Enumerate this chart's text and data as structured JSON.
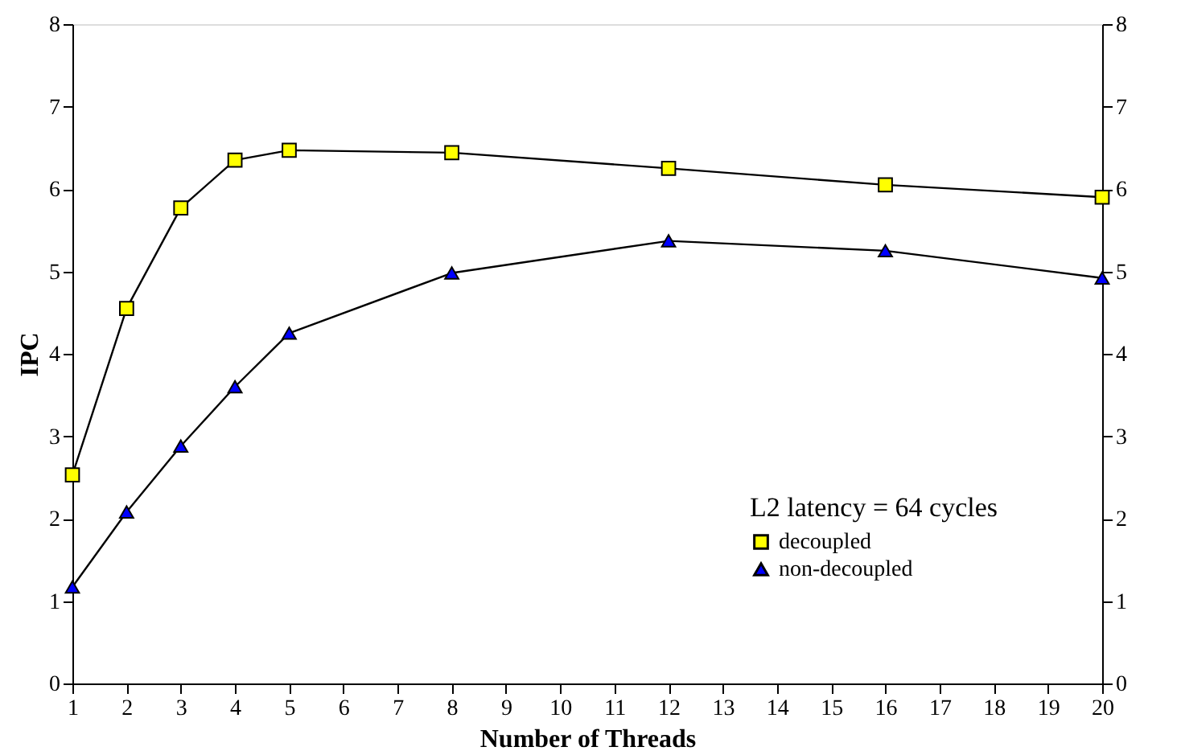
{
  "chart_data": {
    "type": "line",
    "xlabel": "Number of Threads",
    "ylabel": "IPC",
    "legend_title": "L2 latency = 64 cycles",
    "legend": "bottom right",
    "grid": false,
    "x": [
      1,
      2,
      3,
      4,
      5,
      8,
      12,
      16,
      20
    ],
    "xlim": [
      1,
      20
    ],
    "xticks": [
      1,
      2,
      3,
      4,
      5,
      6,
      7,
      8,
      9,
      10,
      11,
      12,
      13,
      14,
      15,
      16,
      17,
      18,
      19,
      20
    ],
    "ylim": [
      0,
      8
    ],
    "yticks": [
      0,
      1,
      2,
      3,
      4,
      5,
      6,
      7,
      8
    ],
    "y2lim": [
      0,
      8
    ],
    "y2ticks": [
      0,
      1,
      2,
      3,
      4,
      5,
      6,
      7,
      8
    ],
    "series": [
      {
        "name": "decoupled",
        "color": "#ffff00",
        "marker": "square",
        "values": [
          2.53,
          4.55,
          5.77,
          6.35,
          6.47,
          6.44,
          6.25,
          6.05,
          5.9
        ]
      },
      {
        "name": "non-decoupled",
        "color": "#0000ff",
        "marker": "triangle",
        "values": [
          1.17,
          2.08,
          2.88,
          3.6,
          4.25,
          4.98,
          5.37,
          5.25,
          4.92
        ]
      }
    ]
  }
}
